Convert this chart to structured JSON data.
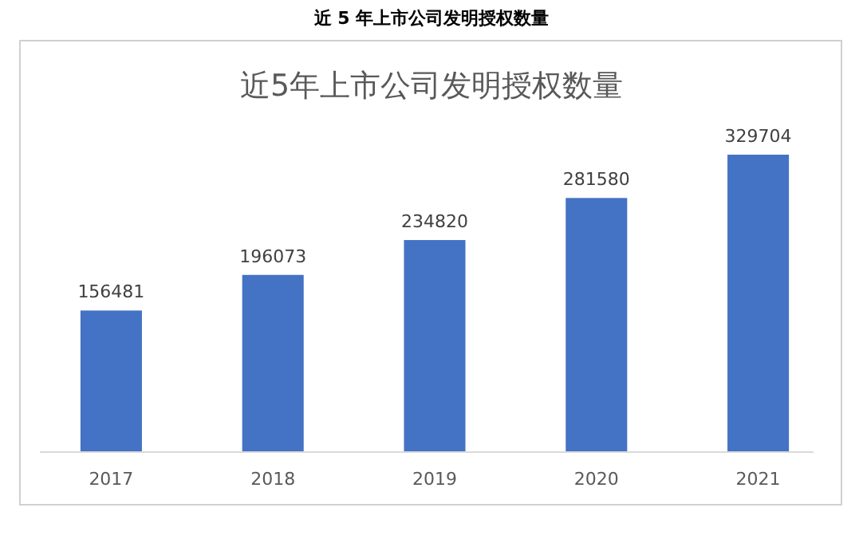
{
  "chart_data": {
    "type": "bar",
    "title": "近 5 年上市公司发明授权数量",
    "subtitle": "近5年上市公司发明授权数量",
    "categories": [
      "2017",
      "2018",
      "2019",
      "2020",
      "2021"
    ],
    "values": [
      156481,
      196073,
      234820,
      281580,
      329704
    ],
    "color": "#4472c4",
    "data_labels": true
  }
}
